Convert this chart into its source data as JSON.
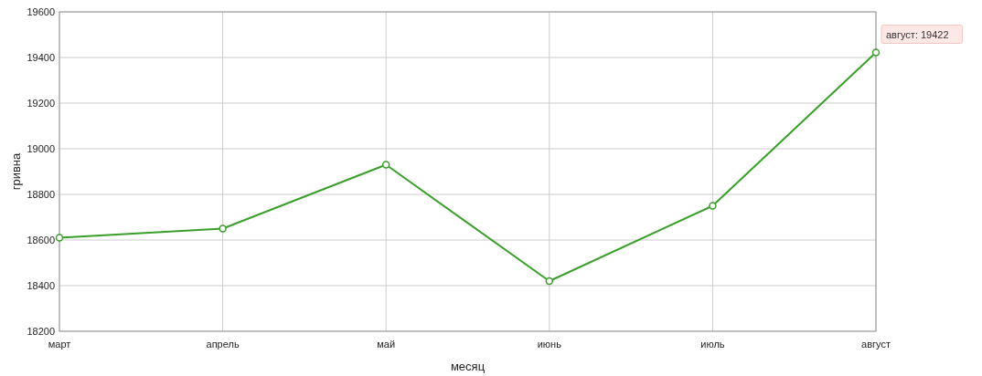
{
  "chart_data": {
    "type": "line",
    "xlabel": "месяц",
    "ylabel": "гривна",
    "categories": [
      "март",
      "апрель",
      "май",
      "июнь",
      "июль",
      "август"
    ],
    "series": [
      {
        "color": "#3a9e2a",
        "values": [
          18610,
          18650,
          18930,
          18420,
          18750,
          19422
        ]
      }
    ],
    "ylim": [
      18200,
      19600
    ],
    "yticks": [
      18200,
      18400,
      18600,
      18800,
      19000,
      19200,
      19400,
      19600
    ],
    "grid": true,
    "marker": "circle",
    "line_style": "solid",
    "annotations": [
      {
        "text": "август: 19422",
        "x": "август",
        "y": 19422
      }
    ]
  }
}
